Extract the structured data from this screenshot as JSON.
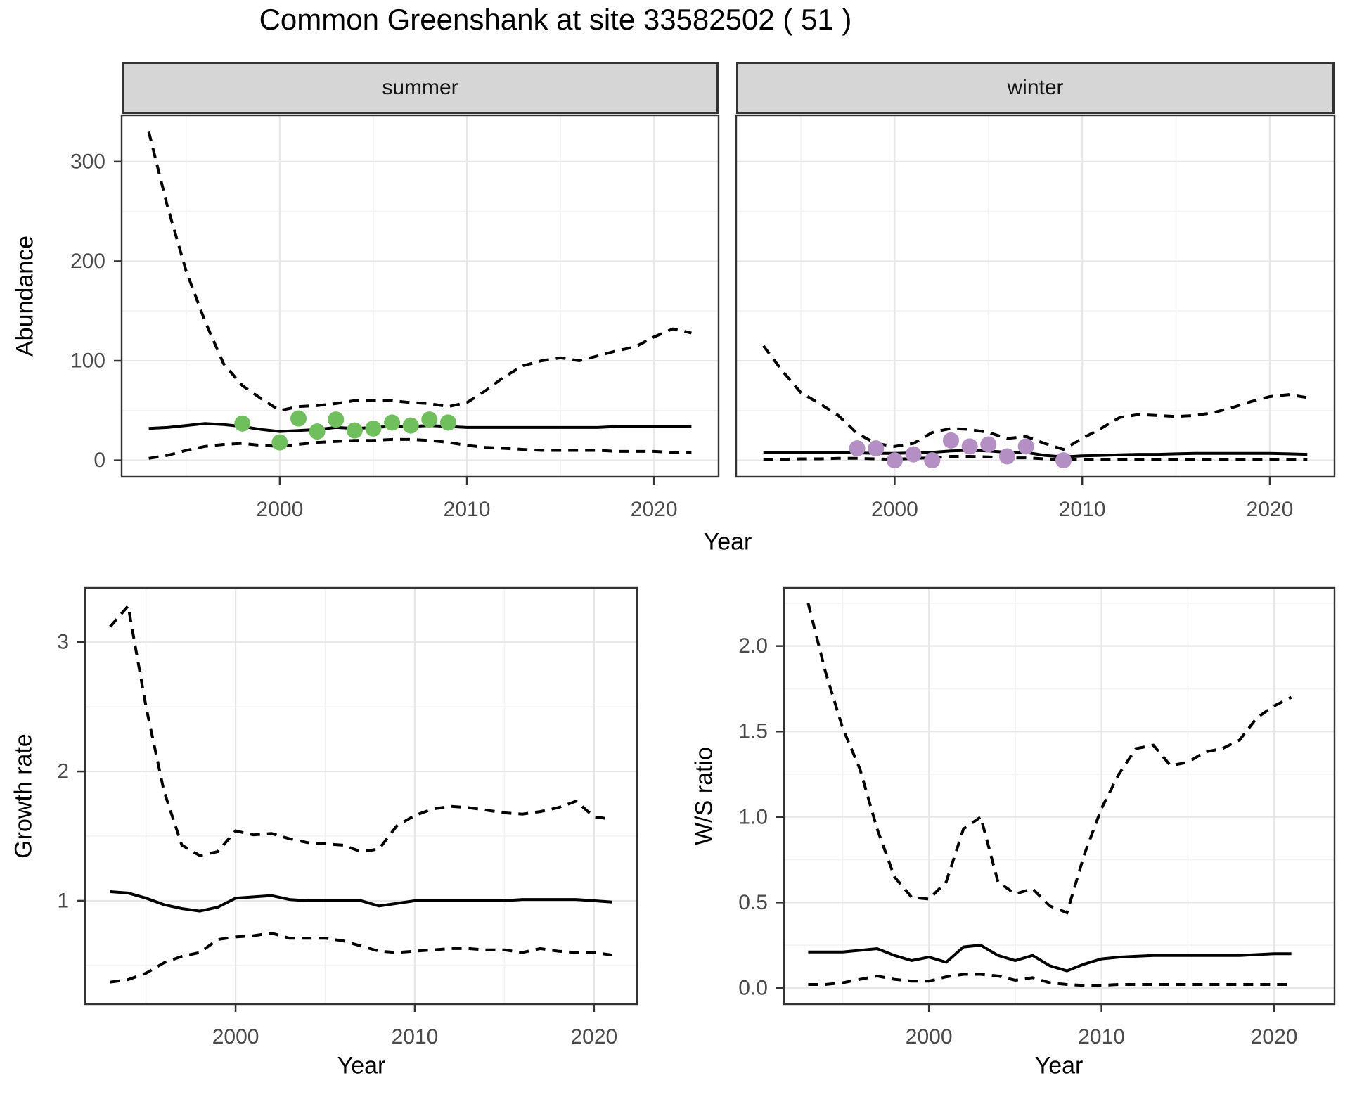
{
  "title": "Common Greenshank at site 33582502 ( 51 )",
  "colors": {
    "line": "#000000",
    "summer_point": "#6fbf5d",
    "winter_point": "#b48fc4",
    "grid_major": "#e7e7e7",
    "grid_minor": "#f2f2f2",
    "panel_border": "#333333",
    "strip_bg": "#d6d6d6",
    "tick_label": "#4a4a4a"
  },
  "chart_data": [
    {
      "type": "line",
      "panel": "summer",
      "facet_label": "summer",
      "xlabel": "Year",
      "ylabel": "Abundance",
      "xlim": [
        1991.55,
        2023.45
      ],
      "ylim": [
        -16.5,
        346.5
      ],
      "x_ticks": [
        2000,
        2010,
        2020
      ],
      "x_tick_labels": [
        "2000",
        "2010",
        "2020"
      ],
      "y_ticks": [
        0,
        100,
        200,
        300
      ],
      "y_tick_labels": [
        "0",
        "100",
        "200",
        "300"
      ],
      "show_y_axis": true,
      "x": [
        1993,
        1994,
        1995,
        1996,
        1997,
        1998,
        1999,
        2000,
        2001,
        2002,
        2003,
        2004,
        2005,
        2006,
        2007,
        2008,
        2009,
        2010,
        2011,
        2012,
        2013,
        2014,
        2015,
        2016,
        2017,
        2018,
        2019,
        2020,
        2021,
        2022
      ],
      "series": [
        {
          "name": "upper_ci",
          "style": "dashed",
          "values": [
            330,
            255,
            190,
            140,
            97,
            75,
            62,
            50,
            54,
            55,
            57,
            60,
            60,
            60,
            58,
            57,
            54,
            58,
            70,
            84,
            95,
            100,
            103,
            100,
            105,
            110,
            114,
            124,
            132,
            128
          ]
        },
        {
          "name": "median",
          "style": "solid",
          "values": [
            32,
            33,
            35,
            37,
            36,
            34,
            31,
            29,
            30,
            31,
            33,
            32,
            33,
            34,
            34,
            35,
            34,
            33,
            33,
            33,
            33,
            33,
            33,
            33,
            33,
            34,
            34,
            34,
            34,
            34
          ]
        },
        {
          "name": "lower_ci",
          "style": "dashed",
          "values": [
            2,
            5,
            10,
            14,
            16,
            17,
            15,
            14,
            16,
            18,
            19,
            20,
            20,
            21,
            21,
            20,
            18,
            15,
            13,
            12,
            11,
            10,
            10,
            10,
            10,
            9,
            9,
            9,
            8,
            8
          ]
        }
      ],
      "points": {
        "name": "observed_counts",
        "color_key": "summer_point",
        "years": [
          1998,
          2000,
          2001,
          2002,
          2003,
          2004,
          2005,
          2006,
          2007,
          2008,
          2009
        ],
        "values": [
          37,
          18,
          42,
          29,
          41,
          30,
          32,
          38,
          35,
          41,
          38
        ]
      }
    },
    {
      "type": "line",
      "panel": "winter",
      "facet_label": "winter",
      "xlabel": "Year",
      "ylabel": "Abundance",
      "xlim": [
        1991.55,
        2023.45
      ],
      "ylim": [
        -16.5,
        346.5
      ],
      "x_ticks": [
        2000,
        2010,
        2020
      ],
      "x_tick_labels": [
        "2000",
        "2010",
        "2020"
      ],
      "y_ticks": [
        0,
        100,
        200,
        300
      ],
      "y_tick_labels": [
        "0",
        "100",
        "200",
        "300"
      ],
      "show_y_axis": false,
      "x": [
        1993,
        1994,
        1995,
        1996,
        1997,
        1998,
        1999,
        2000,
        2001,
        2002,
        2003,
        2004,
        2005,
        2006,
        2007,
        2008,
        2009,
        2010,
        2011,
        2012,
        2013,
        2014,
        2015,
        2016,
        2017,
        2018,
        2019,
        2020,
        2021,
        2022
      ],
      "series": [
        {
          "name": "upper_ci",
          "style": "dashed",
          "values": [
            115,
            90,
            68,
            57,
            45,
            27,
            17,
            14,
            17,
            28,
            32,
            31,
            28,
            22,
            24,
            17,
            11,
            22,
            32,
            43,
            46,
            45,
            44,
            45,
            48,
            53,
            59,
            64,
            66,
            63
          ]
        },
        {
          "name": "median",
          "style": "solid",
          "values": [
            8,
            8,
            8,
            8,
            8,
            7.5,
            7,
            7,
            7.5,
            8,
            9.5,
            10,
            9.5,
            8,
            8,
            5,
            3.5,
            4.5,
            5,
            5.5,
            6,
            6,
            6.5,
            7,
            7,
            7,
            7,
            7,
            6.5,
            6
          ]
        },
        {
          "name": "lower_ci",
          "style": "dashed",
          "values": [
            1,
            1,
            1.5,
            1.5,
            2,
            2,
            1.5,
            1,
            2,
            2.5,
            4,
            4,
            3.5,
            2.5,
            2.5,
            1.5,
            0.5,
            0.5,
            0.5,
            1,
            1,
            1,
            1,
            1,
            1,
            1,
            1,
            1,
            0.5,
            0.5
          ]
        }
      ],
      "points": {
        "name": "observed_counts",
        "color_key": "winter_point",
        "years": [
          1998,
          1999,
          2000,
          2001,
          2002,
          2003,
          2004,
          2005,
          2006,
          2007,
          2009
        ],
        "values": [
          12,
          12,
          0,
          6,
          0,
          20,
          14,
          16,
          4,
          14,
          0
        ]
      }
    },
    {
      "type": "line",
      "panel": "growth_rate",
      "facet_label": "",
      "xlabel": "Year",
      "ylabel": "Growth rate",
      "xlim": [
        1991.6,
        2022.4
      ],
      "ylim": [
        0.2,
        3.42
      ],
      "x_ticks": [
        2000,
        2010,
        2020
      ],
      "x_tick_labels": [
        "2000",
        "2010",
        "2020"
      ],
      "y_ticks": [
        1,
        2,
        3
      ],
      "y_tick_labels": [
        "1",
        "2",
        "3"
      ],
      "show_y_axis": true,
      "x": [
        1993,
        1994,
        1995,
        1996,
        1997,
        1998,
        1999,
        2000,
        2001,
        2002,
        2003,
        2004,
        2005,
        2006,
        2007,
        2008,
        2009,
        2010,
        2011,
        2012,
        2013,
        2014,
        2015,
        2016,
        2017,
        2018,
        2019,
        2020,
        2021
      ],
      "series": [
        {
          "name": "upper_ci",
          "style": "dashed",
          "values": [
            3.12,
            3.28,
            2.5,
            1.85,
            1.43,
            1.35,
            1.38,
            1.54,
            1.51,
            1.52,
            1.48,
            1.45,
            1.44,
            1.43,
            1.38,
            1.4,
            1.58,
            1.66,
            1.71,
            1.73,
            1.72,
            1.7,
            1.68,
            1.67,
            1.69,
            1.72,
            1.77,
            1.65,
            1.63
          ]
        },
        {
          "name": "median",
          "style": "solid",
          "values": [
            1.07,
            1.06,
            1.02,
            0.97,
            0.94,
            0.92,
            0.95,
            1.02,
            1.03,
            1.04,
            1.01,
            1.0,
            1.0,
            1.0,
            1.0,
            0.96,
            0.98,
            1.0,
            1.0,
            1.0,
            1.0,
            1.0,
            1.0,
            1.01,
            1.01,
            1.01,
            1.01,
            1.0,
            0.99
          ]
        },
        {
          "name": "lower_ci",
          "style": "dashed",
          "values": [
            0.37,
            0.39,
            0.44,
            0.52,
            0.57,
            0.6,
            0.7,
            0.72,
            0.73,
            0.75,
            0.71,
            0.71,
            0.71,
            0.69,
            0.65,
            0.61,
            0.6,
            0.61,
            0.62,
            0.63,
            0.63,
            0.62,
            0.62,
            0.6,
            0.63,
            0.61,
            0.6,
            0.6,
            0.58
          ]
        }
      ],
      "points": null
    },
    {
      "type": "line",
      "panel": "ws_ratio",
      "facet_label": "",
      "xlabel": "Year",
      "ylabel": "W/S ratio",
      "xlim": [
        1991.6,
        2023.5
      ],
      "ylim": [
        -0.095,
        2.34
      ],
      "x_ticks": [
        2000,
        2010,
        2020
      ],
      "x_tick_labels": [
        "2000",
        "2010",
        "2020"
      ],
      "y_ticks": [
        0,
        0.5,
        1,
        1.5,
        2
      ],
      "y_tick_labels": [
        "0.0",
        "0.5",
        "1.0",
        "1.5",
        "2.0"
      ],
      "show_y_axis": true,
      "x": [
        1993,
        1994,
        1995,
        1996,
        1997,
        1998,
        1999,
        2000,
        2001,
        2002,
        2003,
        2004,
        2005,
        2006,
        2007,
        2008,
        2009,
        2010,
        2011,
        2012,
        2013,
        2014,
        2015,
        2016,
        2017,
        2018,
        2019,
        2020,
        2021
      ],
      "series": [
        {
          "name": "upper_ci",
          "style": "dashed",
          "values": [
            2.25,
            1.85,
            1.52,
            1.28,
            0.93,
            0.65,
            0.53,
            0.52,
            0.62,
            0.93,
            1.0,
            0.62,
            0.55,
            0.58,
            0.48,
            0.44,
            0.78,
            1.05,
            1.25,
            1.4,
            1.42,
            1.3,
            1.32,
            1.38,
            1.4,
            1.45,
            1.58,
            1.65,
            1.7
          ]
        },
        {
          "name": "median",
          "style": "solid",
          "values": [
            0.21,
            0.21,
            0.21,
            0.22,
            0.23,
            0.19,
            0.16,
            0.18,
            0.15,
            0.24,
            0.25,
            0.19,
            0.16,
            0.19,
            0.13,
            0.1,
            0.14,
            0.17,
            0.18,
            0.185,
            0.19,
            0.19,
            0.19,
            0.19,
            0.19,
            0.19,
            0.195,
            0.2,
            0.2
          ]
        },
        {
          "name": "lower_ci",
          "style": "dashed",
          "values": [
            0.02,
            0.02,
            0.03,
            0.05,
            0.07,
            0.05,
            0.04,
            0.04,
            0.065,
            0.08,
            0.08,
            0.07,
            0.045,
            0.06,
            0.03,
            0.02,
            0.015,
            0.015,
            0.02,
            0.02,
            0.02,
            0.02,
            0.02,
            0.02,
            0.02,
            0.02,
            0.02,
            0.02,
            0.02
          ]
        }
      ],
      "points": null
    }
  ]
}
